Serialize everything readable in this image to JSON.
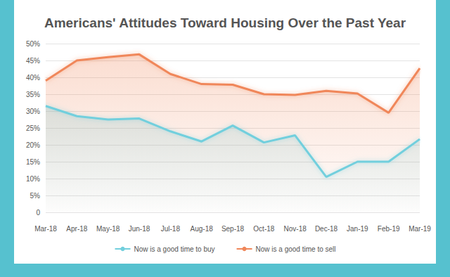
{
  "chart_data": {
    "type": "area",
    "title": "Americans' Attitudes Toward Housing Over the Past Year",
    "categories": [
      "Mar-18",
      "Apr-18",
      "May-18",
      "Jun-18",
      "Jul-18",
      "Aug-18",
      "Sep-18",
      "Oct-18",
      "Nov-18",
      "Dec-18",
      "Jan-19",
      "Feb-19",
      "Mar-19"
    ],
    "series": [
      {
        "name": "Now is a good time to buy",
        "color": "#72cfdd",
        "values": [
          31.5,
          28.5,
          27.5,
          27.8,
          24,
          21,
          25.7,
          20.7,
          22.8,
          10.5,
          15,
          15,
          21.7
        ]
      },
      {
        "name": "Now is a good time to sell",
        "color": "#f0875a",
        "values": [
          39,
          45,
          46,
          46.8,
          41,
          38,
          37.8,
          35,
          34.8,
          36,
          35.2,
          29.5,
          42.7
        ]
      }
    ],
    "ylim": [
      0,
      50
    ],
    "yticks": [
      0,
      {
        "value": 5,
        "label": "5%"
      },
      {
        "value": 10,
        "label": "10%"
      },
      {
        "value": 15,
        "label": "15%"
      },
      {
        "value": 20,
        "label": "20%"
      },
      {
        "value": 25,
        "label": "25%"
      },
      {
        "value": 30,
        "label": "30%"
      },
      {
        "value": 35,
        "label": "35%"
      },
      {
        "value": 40,
        "label": "40%"
      },
      {
        "value": 45,
        "label": "45%"
      },
      {
        "value": 50,
        "label": "50%"
      }
    ],
    "grid": true,
    "legend": "bottom"
  }
}
